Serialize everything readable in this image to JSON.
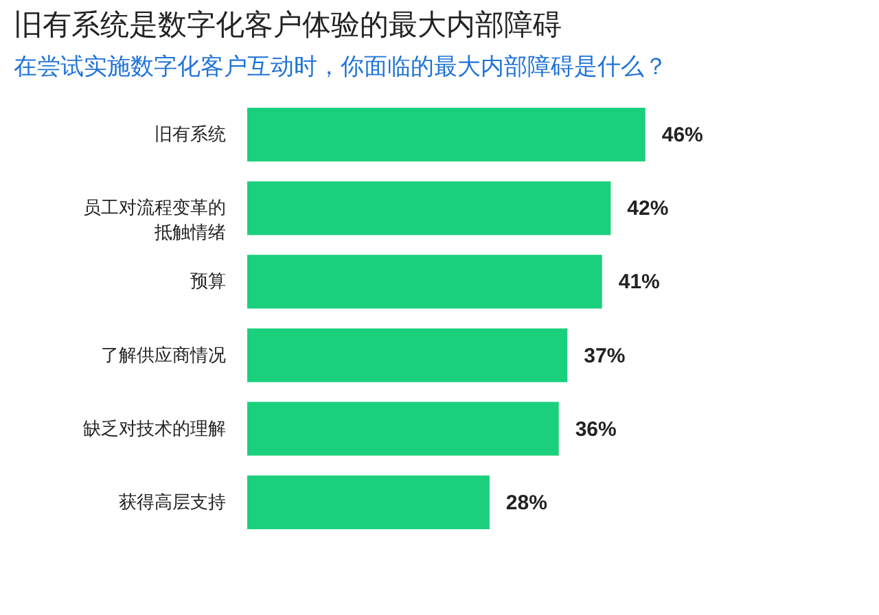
{
  "chart_data": {
    "type": "bar",
    "orientation": "horizontal",
    "title": "旧有系统是数字化客户体验的最大内部障碍",
    "subtitle": "在尝试实施数字化客户互动时，你面临的最大内部障碍是什么？",
    "categories": [
      "旧有系统",
      "员工对流程变革的抵触情绪",
      "预算",
      "了解供应商情况",
      "缺乏对技术的理解",
      "获得高层支持"
    ],
    "values": [
      46,
      42,
      41,
      37,
      36,
      28
    ],
    "color": "#1ad07c",
    "value_labels": [
      "46%",
      "42%",
      "41%",
      "37%",
      "36%",
      "28%"
    ]
  }
}
